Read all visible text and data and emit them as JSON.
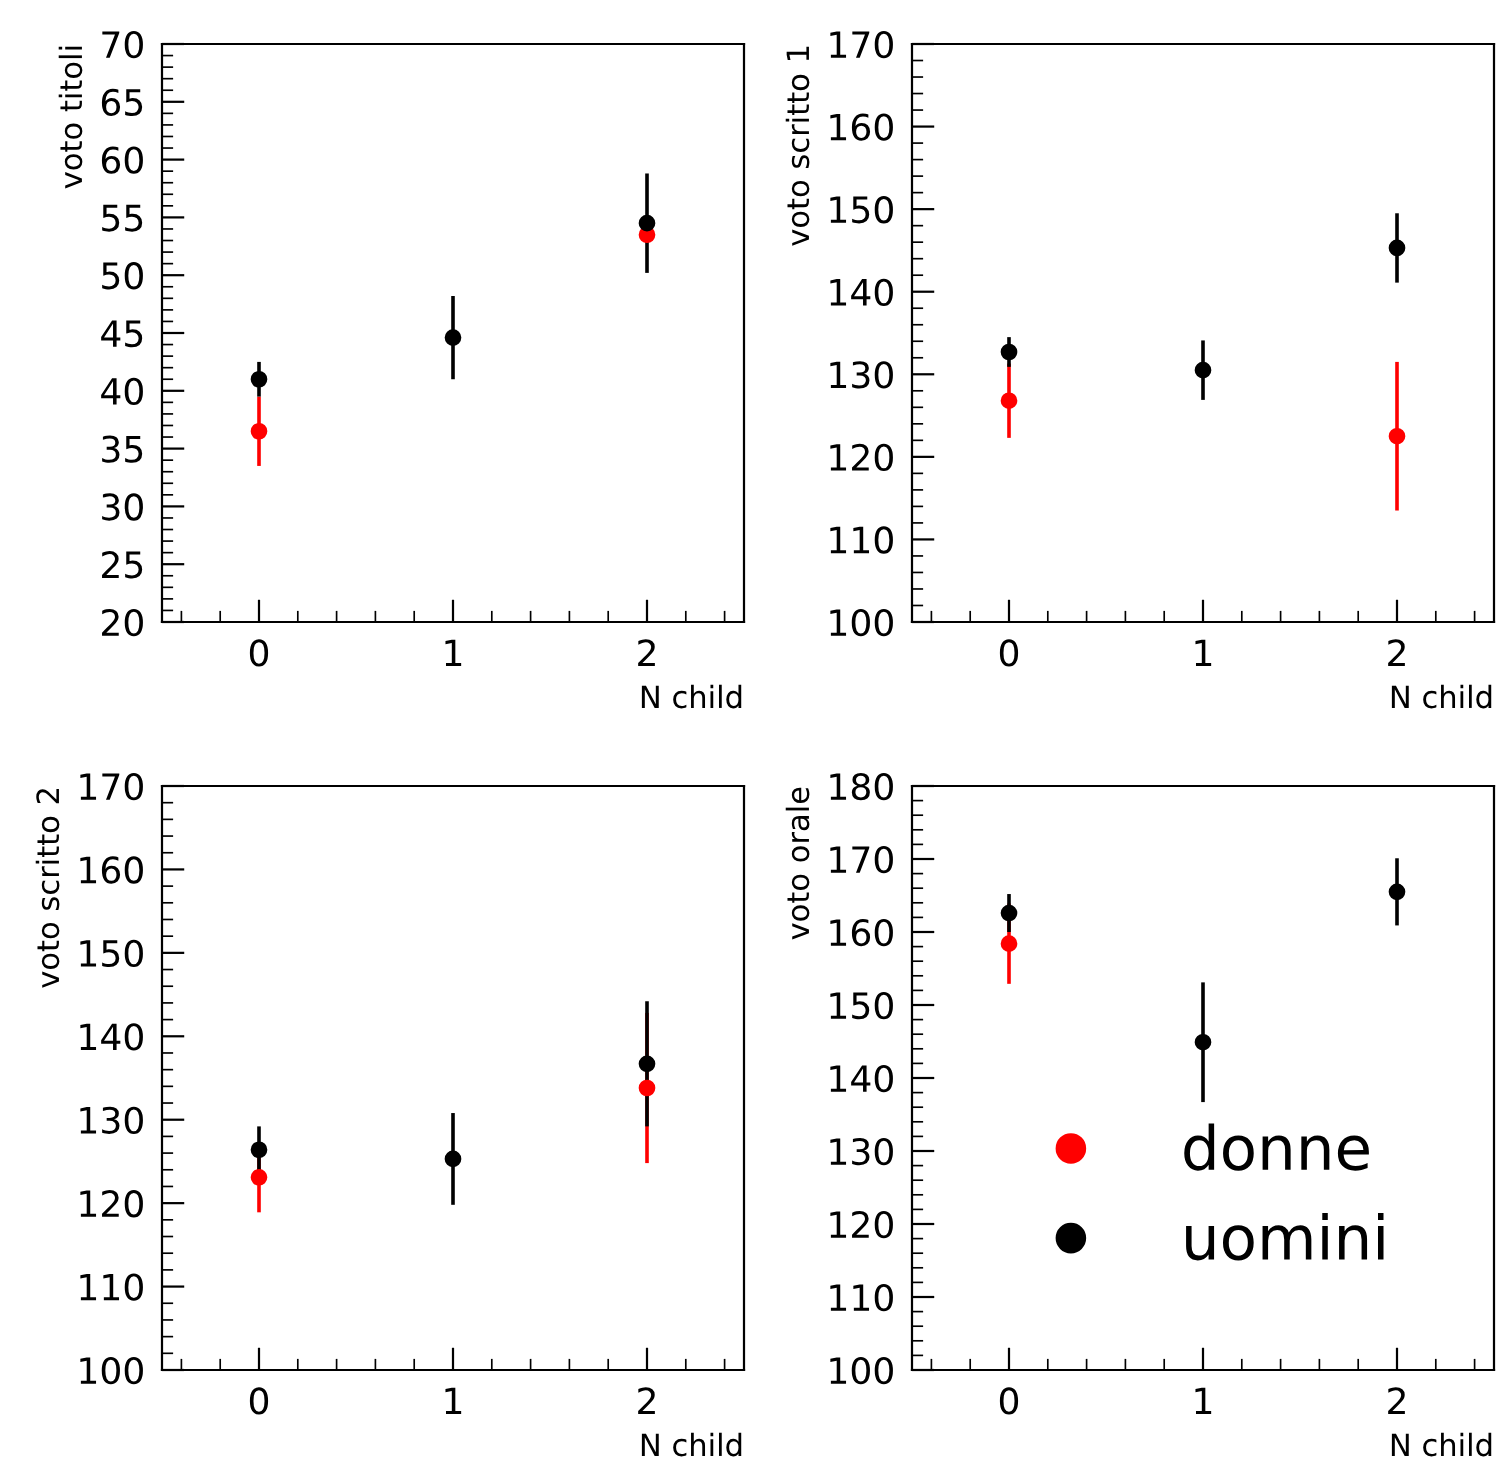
{
  "chart_data": [
    {
      "type": "scatter",
      "xlabel": "N child",
      "ylabel": "voto titoli",
      "x": [
        0,
        1,
        2
      ],
      "xlim": [
        -0.5,
        2.5
      ],
      "xticks": [
        0,
        1,
        2
      ],
      "ylim": [
        20,
        70
      ],
      "yticks": [
        20,
        25,
        30,
        35,
        40,
        45,
        50,
        55,
        60,
        65,
        70
      ],
      "marker": "circle",
      "legend": false,
      "series": [
        {
          "color": "#ff0000",
          "values": [
            36.5,
            null,
            53.5
          ],
          "errors": [
            3,
            null,
            null
          ]
        },
        {
          "color": "#000000",
          "values": [
            41.0,
            44.6,
            54.5
          ],
          "errors": [
            1.5,
            3.6,
            4.3
          ]
        }
      ]
    },
    {
      "type": "scatter",
      "xlabel": "N child",
      "ylabel": "voto scritto 1",
      "x": [
        0,
        1,
        2
      ],
      "xlim": [
        -0.5,
        2.5
      ],
      "xticks": [
        0,
        1,
        2
      ],
      "ylim": [
        100,
        170
      ],
      "yticks": [
        100,
        110,
        120,
        130,
        140,
        150,
        160,
        170
      ],
      "marker": "circle",
      "legend": false,
      "series": [
        {
          "color": "#ff0000",
          "values": [
            126.8,
            null,
            122.5
          ],
          "errors": [
            4.5,
            null,
            9
          ]
        },
        {
          "color": "#000000",
          "values": [
            132.7,
            130.5,
            145.3
          ],
          "errors": [
            1.8,
            3.6,
            4.2
          ]
        }
      ]
    },
    {
      "type": "scatter",
      "xlabel": "N child",
      "ylabel": "voto scritto 2",
      "x": [
        0,
        1,
        2
      ],
      "xlim": [
        -0.5,
        2.5
      ],
      "xticks": [
        0,
        1,
        2
      ],
      "ylim": [
        100,
        170
      ],
      "yticks": [
        100,
        110,
        120,
        130,
        140,
        150,
        160,
        170
      ],
      "marker": "circle",
      "legend": false,
      "series": [
        {
          "color": "#ff0000",
          "values": [
            123.1,
            null,
            133.8
          ],
          "errors": [
            4.2,
            null,
            9
          ]
        },
        {
          "color": "#000000",
          "values": [
            126.4,
            125.3,
            136.7
          ],
          "errors": [
            2.8,
            5.5,
            7.5
          ]
        }
      ]
    },
    {
      "type": "scatter",
      "xlabel": "N child",
      "ylabel": "voto orale",
      "x": [
        0,
        1,
        2
      ],
      "xlim": [
        -0.5,
        2.5
      ],
      "xticks": [
        0,
        1,
        2
      ],
      "ylim": [
        100,
        180
      ],
      "yticks": [
        100,
        110,
        120,
        130,
        140,
        150,
        160,
        170,
        180
      ],
      "marker": "circle",
      "legend": "bottom left",
      "series": [
        {
          "name": "donne",
          "color": "#ff0000",
          "values": [
            158.4,
            null,
            null
          ],
          "errors": [
            5.5,
            null,
            null
          ]
        },
        {
          "name": "uomini",
          "color": "#000000",
          "values": [
            162.6,
            144.9,
            165.5
          ],
          "errors": [
            2.6,
            8.2,
            4.6
          ]
        }
      ]
    }
  ]
}
